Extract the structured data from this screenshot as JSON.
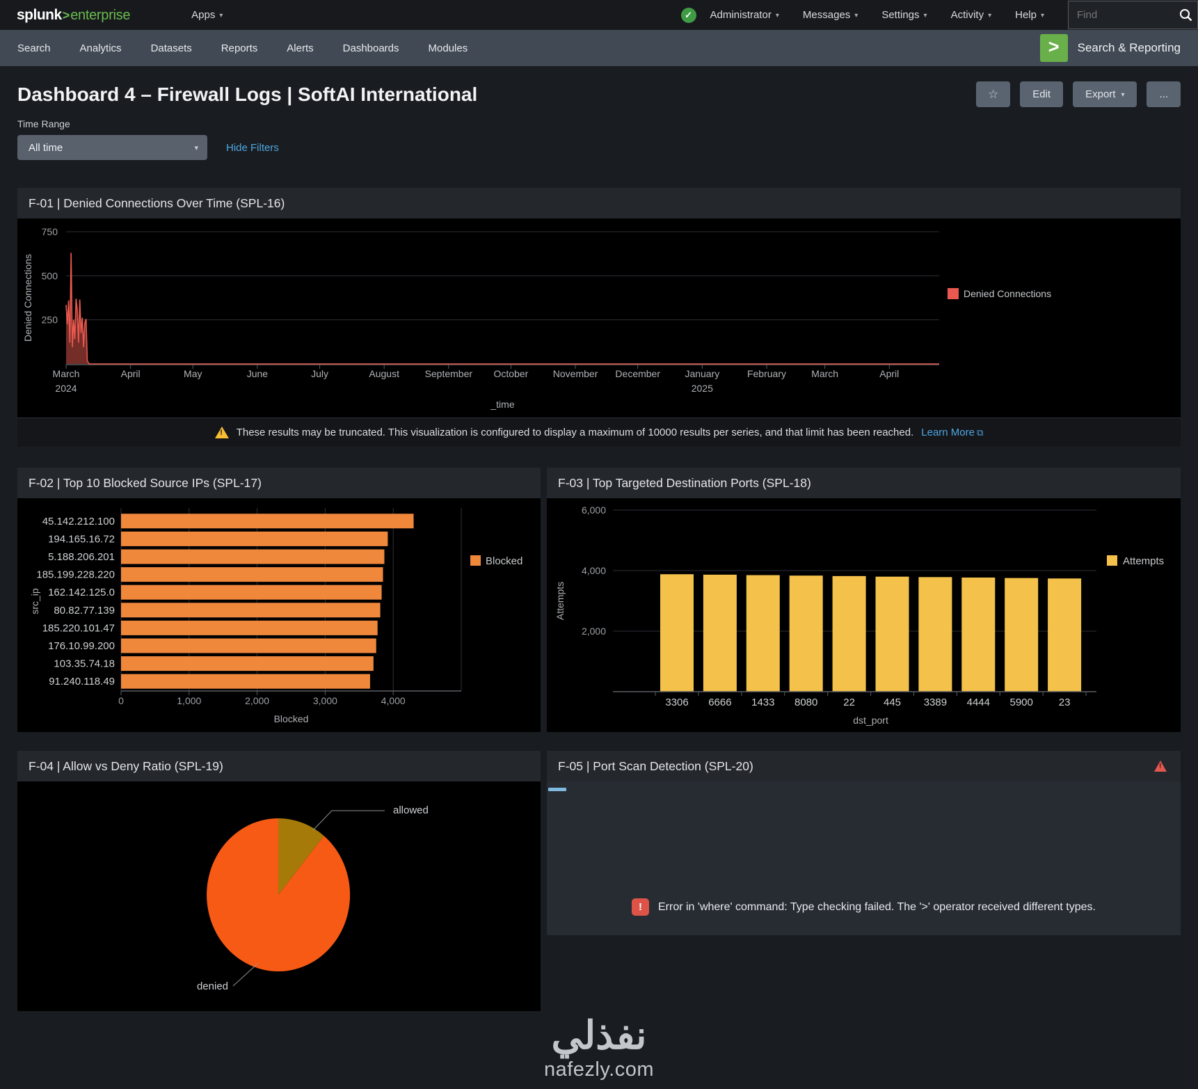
{
  "topnav": {
    "logo": {
      "brand": "splunk",
      "sep": ">",
      "product": "enterprise"
    },
    "apps_label": "Apps",
    "caret": "▾",
    "status_check": "✓",
    "menus": {
      "user": "Administrator",
      "messages": "Messages",
      "settings": "Settings",
      "activity": "Activity",
      "help": "Help"
    },
    "find_placeholder": "Find"
  },
  "appnav": {
    "items": [
      "Search",
      "Analytics",
      "Datasets",
      "Reports",
      "Alerts",
      "Dashboards",
      "Modules"
    ],
    "app_icon": ">",
    "app_name": "Search & Reporting"
  },
  "header": {
    "title": "Dashboard 4 – Firewall Logs | SoftAI International",
    "star_icon": "☆",
    "edit_label": "Edit",
    "export_label": "Export",
    "more_label": "...",
    "caret": "▾"
  },
  "filters": {
    "time_range_label": "Time Range",
    "time_range_value": "All time",
    "hide_filters_label": "Hide Filters",
    "caret": "▾"
  },
  "panels": {
    "f01": {
      "title": "F-01 | Denied Connections Over Time (SPL-16)",
      "warning_icon": "!",
      "warning_text": "These results may be truncated. This visualization is configured to display a maximum of 10000 results per series, and that limit has been reached.",
      "warning_link": "Learn More",
      "warning_link_icon": "⧉"
    },
    "f02": {
      "title": "F-02 | Top 10 Blocked Source IPs (SPL-17)"
    },
    "f03": {
      "title": "F-03 | Top Targeted Destination Ports (SPL-18)"
    },
    "f04": {
      "title": "F-04 | Allow vs Deny Ratio (SPL-19)"
    },
    "f05": {
      "title": "F-05 | Port Scan Detection (SPL-20)",
      "alert_icon": "!",
      "error_icon": "!",
      "error_text": "Error in 'where' command: Type checking failed. The '>' operator received different types."
    }
  },
  "watermark": {
    "logo_text": "نفذلي",
    "site": "nafezly.com"
  },
  "colors": {
    "accent_green": "#6bbb4e",
    "link_blue": "#4fa7e2",
    "warning_yellow": "#f8be34",
    "error_red": "#dd5348",
    "bar_orange": "#f0883c",
    "bar_yellow": "#f4c24a",
    "line_red": "#e9594f",
    "pie_orange": "#f75a15",
    "pie_olive": "#a57a08"
  },
  "chart_data": [
    {
      "id": "denied_over_time",
      "type": "line",
      "title": "Denied Connections Over Time",
      "xlabel": "_time",
      "ylabel": "Denied Connections",
      "yticks": [
        250,
        500,
        750
      ],
      "ylim": [
        0,
        820
      ],
      "xlim": [
        0,
        420
      ],
      "grid": true,
      "legend_position": "right",
      "xticks": [
        {
          "pos": 0,
          "label": "March",
          "sub": "2024"
        },
        {
          "pos": 31,
          "label": "April"
        },
        {
          "pos": 61,
          "label": "May"
        },
        {
          "pos": 92,
          "label": "June"
        },
        {
          "pos": 122,
          "label": "July"
        },
        {
          "pos": 153,
          "label": "August"
        },
        {
          "pos": 184,
          "label": "September"
        },
        {
          "pos": 214,
          "label": "October"
        },
        {
          "pos": 245,
          "label": "November"
        },
        {
          "pos": 275,
          "label": "December"
        },
        {
          "pos": 306,
          "label": "January",
          "sub": "2025"
        },
        {
          "pos": 337,
          "label": "February"
        },
        {
          "pos": 365,
          "label": "March"
        },
        {
          "pos": 396,
          "label": "April"
        }
      ],
      "series": [
        {
          "name": "Denied Connections",
          "color": "#e9594f",
          "points": [
            [
              0,
              335
            ],
            [
              0.6,
              225
            ],
            [
              1.2,
              360
            ],
            [
              1.8,
              120
            ],
            [
              2.4,
              630
            ],
            [
              3,
              95
            ],
            [
              3.6,
              250
            ],
            [
              4.2,
              140
            ],
            [
              4.8,
              370
            ],
            [
              5.4,
              305
            ],
            [
              6,
              120
            ],
            [
              6.6,
              365
            ],
            [
              7.2,
              175
            ],
            [
              7.8,
              262
            ],
            [
              8.4,
              95
            ],
            [
              9,
              232
            ],
            [
              9.6,
              255
            ],
            [
              10.2,
              18
            ],
            [
              11,
              0
            ],
            [
              420,
              0
            ]
          ]
        }
      ]
    },
    {
      "id": "blocked_ips",
      "type": "barh",
      "title": "Top 10 Blocked Source IPs",
      "xlabel": "Blocked",
      "ylabel": "src_ip",
      "categories": [
        "45.142.212.100",
        "194.165.16.72",
        "5.188.206.201",
        "185.199.228.220",
        "162.142.125.0",
        "80.82.77.139",
        "185.220.101.47",
        "176.10.99.200",
        "103.35.74.18",
        "91.240.118.49"
      ],
      "values": [
        4300,
        3920,
        3870,
        3850,
        3830,
        3810,
        3770,
        3750,
        3710,
        3660
      ],
      "xticks": [
        0,
        1000,
        2000,
        3000,
        4000
      ],
      "xlim": [
        0,
        5000
      ],
      "bar_color": "#f0883c",
      "legend": [
        {
          "label": "Blocked",
          "color": "#f0883c"
        }
      ]
    },
    {
      "id": "dst_ports",
      "type": "bar",
      "title": "Top Targeted Destination Ports",
      "xlabel": "dst_port",
      "ylabel": "Attempts",
      "categories": [
        "3306",
        "6666",
        "1433",
        "8080",
        "22",
        "445",
        "3389",
        "4444",
        "5900",
        "23"
      ],
      "values": [
        3880,
        3865,
        3850,
        3835,
        3820,
        3800,
        3785,
        3770,
        3755,
        3740
      ],
      "yticks": [
        2000,
        4000,
        6000
      ],
      "ylim": [
        0,
        6400
      ],
      "bar_color": "#f4c24a",
      "legend": [
        {
          "label": "Attempts",
          "color": "#f4c24a"
        }
      ]
    },
    {
      "id": "allow_deny",
      "type": "pie",
      "title": "Allow vs Deny Ratio",
      "slices": [
        {
          "label": "allowed",
          "value": 11,
          "color": "#a57a08"
        },
        {
          "label": "denied",
          "value": 89,
          "color": "#f75a15"
        }
      ]
    }
  ]
}
